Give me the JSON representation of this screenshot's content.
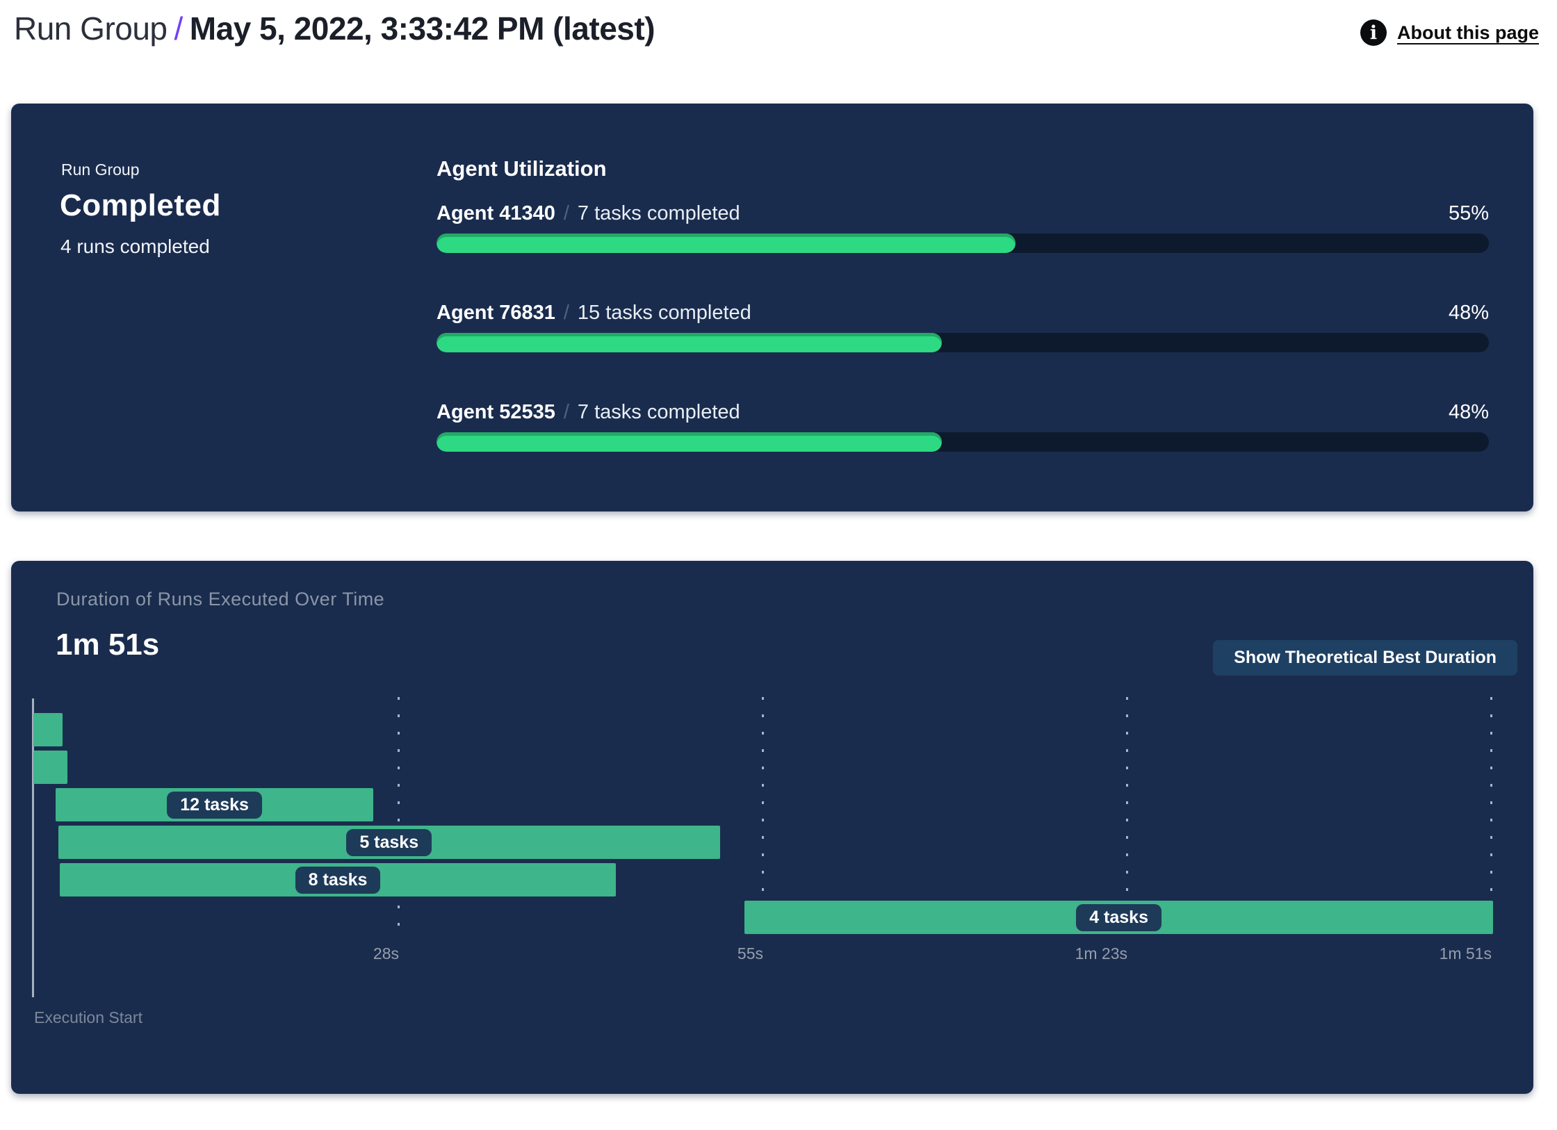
{
  "header": {
    "breadcrumb": "Run Group",
    "separator": "/",
    "title": "May 5, 2022, 3:33:42 PM (latest)",
    "about": {
      "icon": "info-icon",
      "icon_glyph": "i",
      "label": "About this page"
    }
  },
  "run_summary": {
    "eyebrow": "Run Group",
    "status": "Completed",
    "subtitle": "4 runs completed"
  },
  "agent_utilization": {
    "heading": "Agent Utilization",
    "separator": "/",
    "agents": [
      {
        "name": "Agent 41340",
        "tasks_label": "7 tasks completed",
        "percent_label": "55%",
        "percent": 55
      },
      {
        "name": "Agent 76831",
        "tasks_label": "15 tasks completed",
        "percent_label": "48%",
        "percent": 48
      },
      {
        "name": "Agent 52535",
        "tasks_label": "7 tasks completed",
        "percent_label": "48%",
        "percent": 48
      }
    ]
  },
  "duration_panel": {
    "title": "Duration of Runs Executed Over Time",
    "total": "1m 51s",
    "button_label": "Show Theoretical Best Duration",
    "execution_start": "Execution Start"
  },
  "chart_data": [
    {
      "type": "bar",
      "title": "Agent Utilization",
      "categories": [
        "Agent 41340",
        "Agent 76831",
        "Agent 52535"
      ],
      "tasks_completed": [
        7,
        15,
        7
      ],
      "values": [
        55,
        48,
        48
      ],
      "unit": "%",
      "xlim": [
        0,
        100
      ],
      "bar_color": "#2ed983",
      "track_color": "#0d1a2d"
    },
    {
      "type": "gantt",
      "title": "Duration of Runs Executed Over Time",
      "total_duration": "1m 51s",
      "x_axis": {
        "start_label": "Execution Start",
        "ticks": [
          "28s",
          "55s",
          "1m 23s",
          "1m 51s"
        ],
        "tick_seconds": [
          28,
          55,
          83,
          111
        ],
        "range_seconds": [
          0,
          111
        ],
        "gridlines": "dotted-vertical"
      },
      "bars": [
        {
          "row": 1,
          "start_s": 0.0,
          "end_s": 2.2,
          "label": ""
        },
        {
          "row": 2,
          "start_s": 0.0,
          "end_s": 2.6,
          "label": ""
        },
        {
          "row": 3,
          "start_s": 1.7,
          "end_s": 25.9,
          "label": "12 tasks"
        },
        {
          "row": 4,
          "start_s": 1.9,
          "end_s": 52.3,
          "label": "5 tasks"
        },
        {
          "row": 5,
          "start_s": 2.0,
          "end_s": 44.4,
          "label": "8 tasks"
        },
        {
          "row": 6,
          "start_s": 54.2,
          "end_s": 111.2,
          "label": "4 tasks"
        }
      ],
      "bar_color": "#3eb58b"
    }
  ],
  "colors": {
    "panel_bg": "#1a2c4d",
    "track": "#0d1a2d",
    "progress_green": "#2ed983",
    "gantt_green": "#3eb58b",
    "pill_bg": "#1e3a59",
    "button_bg": "#1e4062",
    "accent_purple": "#6f42f5",
    "muted_text": "#8a96a8"
  }
}
